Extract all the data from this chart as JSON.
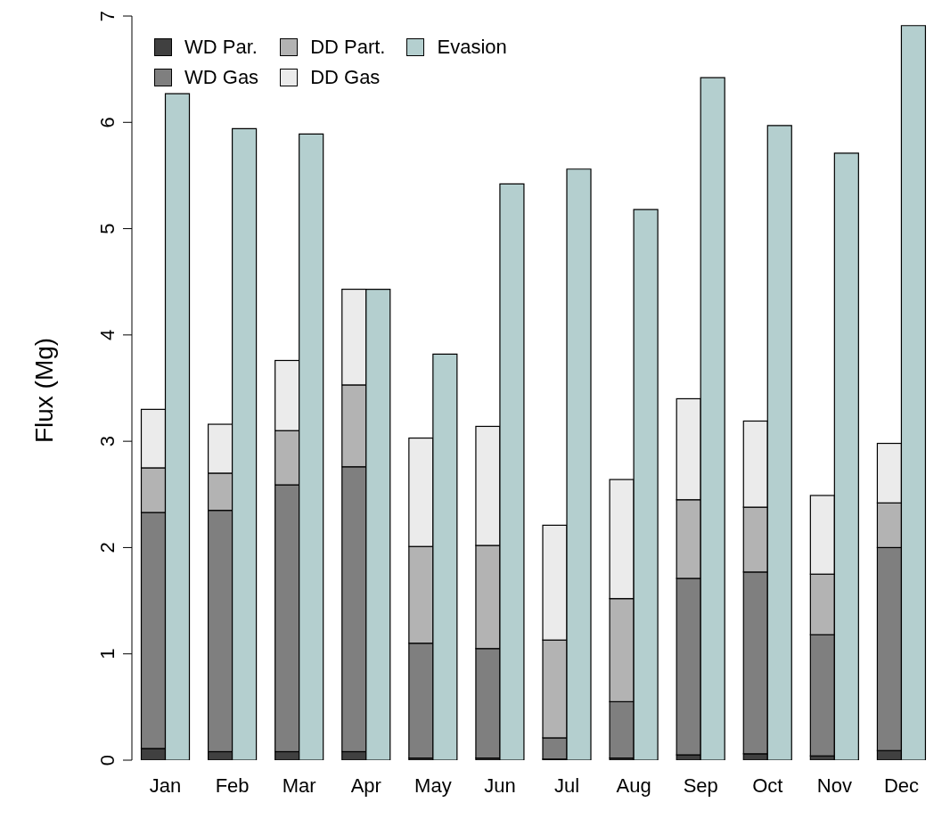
{
  "chart_data": {
    "type": "bar",
    "ylabel": "Flux (Mg)",
    "categories": [
      "Jan",
      "Feb",
      "Mar",
      "Apr",
      "May",
      "Jun",
      "Jul",
      "Aug",
      "Sep",
      "Oct",
      "Nov",
      "Dec"
    ],
    "series": [
      {
        "name": "WD Par.",
        "color": "#404040",
        "base": [
          0,
          0,
          0,
          0,
          0,
          0,
          0,
          0,
          0,
          0,
          0,
          0
        ],
        "values": [
          0.11,
          0.08,
          0.08,
          0.08,
          0.02,
          0.02,
          0.01,
          0.02,
          0.05,
          0.06,
          0.04,
          0.09
        ]
      },
      {
        "name": "WD Gas",
        "color": "#7f7f7f",
        "base": [
          0.11,
          0.08,
          0.08,
          0.08,
          0.02,
          0.02,
          0.01,
          0.02,
          0.05,
          0.06,
          0.04,
          0.09
        ],
        "values": [
          2.22,
          2.27,
          2.51,
          2.68,
          1.08,
          1.03,
          0.2,
          0.53,
          1.66,
          1.71,
          1.14,
          1.91
        ]
      },
      {
        "name": "DD Part.",
        "color": "#b3b3b3",
        "base": [
          2.33,
          2.35,
          2.59,
          2.76,
          1.1,
          1.05,
          0.21,
          0.55,
          1.71,
          1.77,
          1.18,
          2.0
        ],
        "values": [
          0.42,
          0.35,
          0.51,
          0.77,
          0.91,
          0.97,
          0.92,
          0.97,
          0.74,
          0.61,
          0.57,
          0.42
        ]
      },
      {
        "name": "DD Gas",
        "color": "#ebebeb",
        "base": [
          2.75,
          2.7,
          3.1,
          3.53,
          2.01,
          2.02,
          1.13,
          1.52,
          2.45,
          2.38,
          1.75,
          2.42
        ],
        "values": [
          0.55,
          0.46,
          0.66,
          0.9,
          1.02,
          1.12,
          1.08,
          1.12,
          0.95,
          0.81,
          0.74,
          0.56
        ]
      },
      {
        "name": "Evasion",
        "color": "#b4cfcf",
        "values": [
          6.27,
          5.94,
          5.89,
          4.43,
          3.82,
          5.42,
          5.56,
          5.18,
          6.42,
          5.97,
          5.71,
          6.91
        ]
      }
    ],
    "ylim": [
      0,
      7
    ],
    "yticks": [
      0,
      1,
      2,
      3,
      4,
      5,
      6,
      7
    ],
    "grid": false,
    "legend": "top left"
  }
}
